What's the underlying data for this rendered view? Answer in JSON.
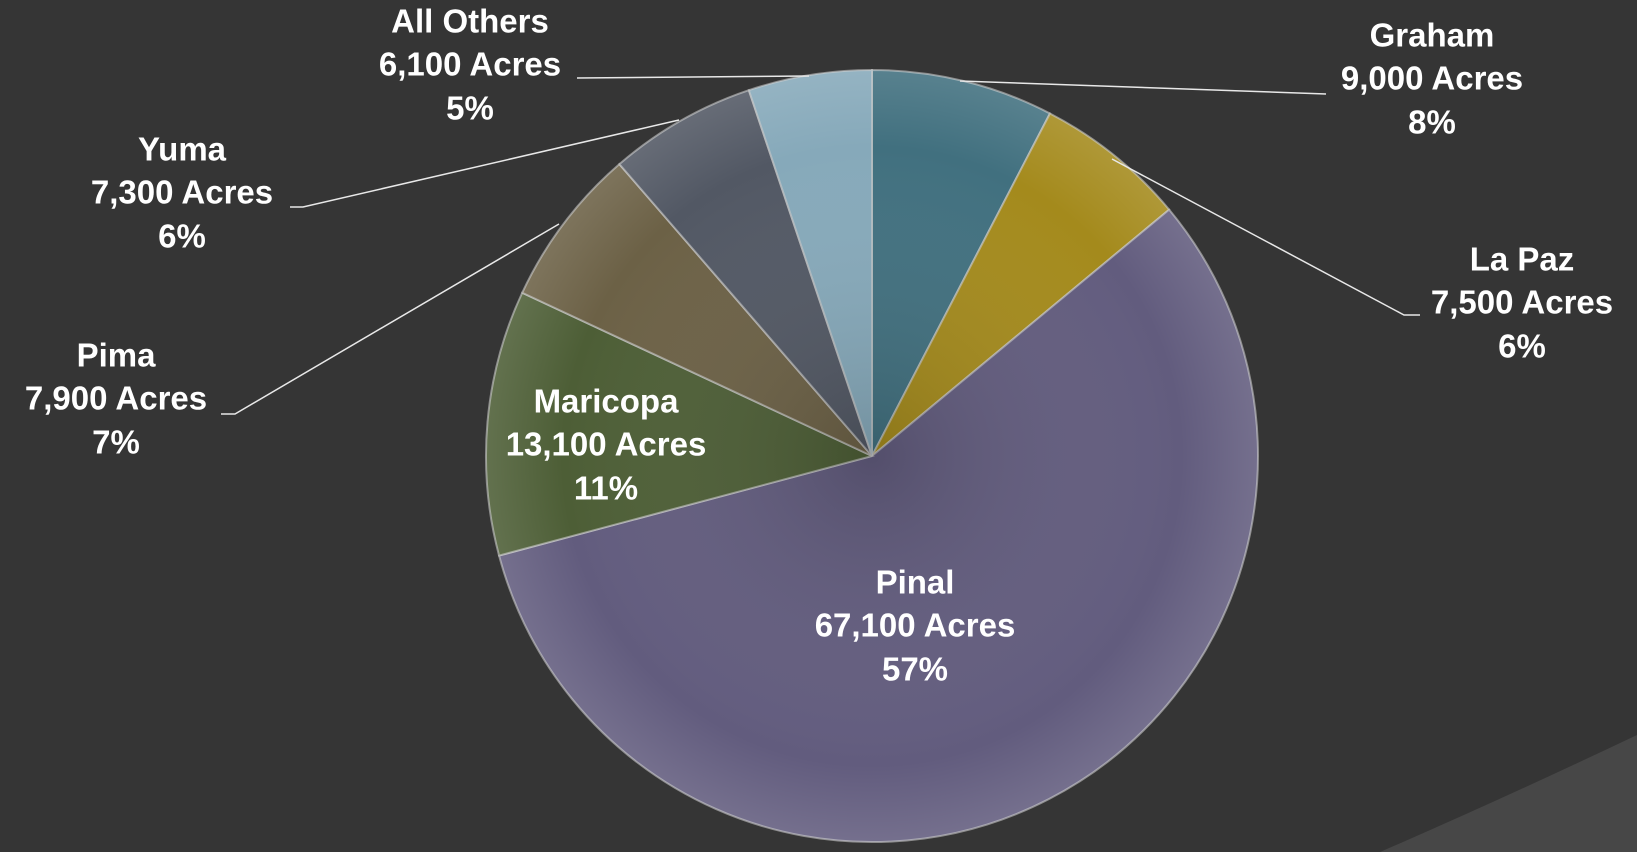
{
  "chart_data": {
    "type": "pie",
    "categories": [
      "Graham",
      "La Paz",
      "Pinal",
      "Maricopa",
      "Pima",
      "Yuma",
      "All Others"
    ],
    "values": [
      9000,
      7500,
      67100,
      13100,
      7900,
      7300,
      6100
    ],
    "value_labels": [
      "9,000 Acres",
      "7,500 Acres",
      "67,100 Acres",
      "13,100 Acres",
      "7,900 Acres",
      "7,300 Acres",
      "6,100 Acres"
    ],
    "percent_labels": [
      "8%",
      "6%",
      "57%",
      "11%",
      "7%",
      "6%",
      "5%"
    ],
    "colors": [
      "#41707f",
      "#a48a1c",
      "#625c7e",
      "#4d5e36",
      "#6c6146",
      "#525864",
      "#86a9ba"
    ]
  }
}
